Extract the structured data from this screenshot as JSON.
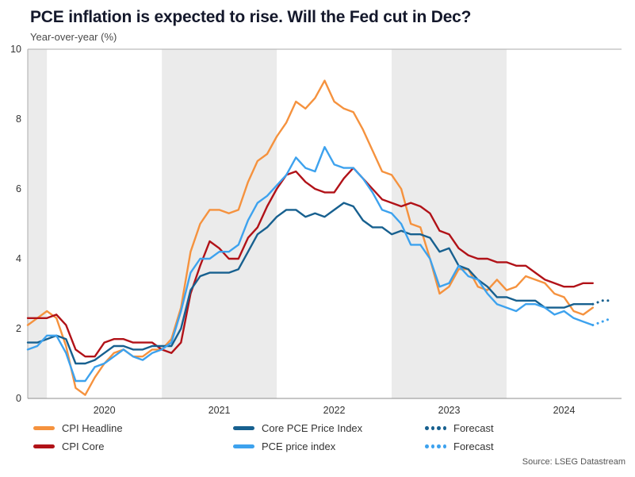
{
  "header": {
    "title": "PCE inflation is expected to rise. Will the Fed cut in Dec?",
    "subtitle": "Year-over-year (%)"
  },
  "source": {
    "text": "Source: LSEG Datastream"
  },
  "legend": {
    "items": [
      {
        "label": "CPI Headline",
        "color": "#f5923e",
        "style": "solid"
      },
      {
        "label": "CPI Core",
        "color": "#b11218",
        "style": "solid"
      },
      {
        "label": "Core PCE Price Index",
        "color": "#17608f",
        "style": "solid"
      },
      {
        "label": "PCE price index",
        "color": "#3da2ee",
        "style": "solid"
      },
      {
        "label": "Forecast",
        "color": "#17608f",
        "style": "dotted"
      },
      {
        "label": "Forecast",
        "color": "#3da2ee",
        "style": "dotted"
      }
    ]
  },
  "chart_data": {
    "type": "line",
    "title": "PCE inflation is expected to rise. Will the Fed cut in Dec?",
    "subtitle": "Year-over-year (%)",
    "x_start_month": "2019-11",
    "x_domain": [
      2019.8333,
      2025.0
    ],
    "x_ticks": [
      2020,
      2021,
      2022,
      2023,
      2024
    ],
    "shaded_years": [
      2019,
      2021,
      2023
    ],
    "band_color": "#ebebeb",
    "ylim": [
      0,
      10
    ],
    "y_ticks": [
      0,
      2,
      4,
      6,
      8,
      10
    ],
    "grid": false,
    "legend_position": "bottom",
    "series": [
      {
        "name": "CPI Headline",
        "color": "#f5923e",
        "values": [
          2.1,
          2.3,
          2.5,
          2.3,
          1.5,
          0.3,
          0.1,
          0.6,
          1.0,
          1.3,
          1.4,
          1.2,
          1.2,
          1.4,
          1.4,
          1.7,
          2.6,
          4.2,
          5.0,
          5.4,
          5.4,
          5.3,
          5.4,
          6.2,
          6.8,
          7.0,
          7.5,
          7.9,
          8.5,
          8.3,
          8.6,
          9.1,
          8.5,
          8.3,
          8.2,
          7.7,
          7.1,
          6.5,
          6.4,
          6.0,
          5.0,
          4.9,
          4.0,
          3.0,
          3.2,
          3.7,
          3.7,
          3.2,
          3.1,
          3.4,
          3.1,
          3.2,
          3.5,
          3.4,
          3.3,
          3.0,
          2.9,
          2.5,
          2.4,
          2.6
        ]
      },
      {
        "name": "CPI Core",
        "color": "#b11218",
        "values": [
          2.3,
          2.3,
          2.3,
          2.4,
          2.1,
          1.4,
          1.2,
          1.2,
          1.6,
          1.7,
          1.7,
          1.6,
          1.6,
          1.6,
          1.4,
          1.3,
          1.6,
          3.0,
          3.8,
          4.5,
          4.3,
          4.0,
          4.0,
          4.6,
          4.9,
          5.5,
          6.0,
          6.4,
          6.5,
          6.2,
          6.0,
          5.9,
          5.9,
          6.3,
          6.6,
          6.3,
          6.0,
          5.7,
          5.6,
          5.5,
          5.6,
          5.5,
          5.3,
          4.8,
          4.7,
          4.3,
          4.1,
          4.0,
          4.0,
          3.9,
          3.9,
          3.8,
          3.8,
          3.6,
          3.4,
          3.3,
          3.2,
          3.2,
          3.3,
          3.3
        ]
      },
      {
        "name": "Core PCE Price Index",
        "color": "#17608f",
        "values": [
          1.6,
          1.6,
          1.7,
          1.8,
          1.7,
          1.0,
          1.0,
          1.1,
          1.3,
          1.5,
          1.5,
          1.4,
          1.4,
          1.5,
          1.5,
          1.5,
          2.0,
          3.1,
          3.5,
          3.6,
          3.6,
          3.6,
          3.7,
          4.2,
          4.7,
          4.9,
          5.2,
          5.4,
          5.4,
          5.2,
          5.3,
          5.2,
          5.4,
          5.6,
          5.5,
          5.1,
          4.9,
          4.9,
          4.7,
          4.8,
          4.7,
          4.7,
          4.6,
          4.2,
          4.3,
          3.8,
          3.7,
          3.4,
          3.2,
          2.9,
          2.9,
          2.8,
          2.8,
          2.8,
          2.6,
          2.6,
          2.6,
          2.7,
          2.7,
          2.7
        ]
      },
      {
        "name": "PCE price index",
        "color": "#3da2ee",
        "values": [
          1.4,
          1.5,
          1.8,
          1.8,
          1.3,
          0.5,
          0.5,
          0.9,
          1.0,
          1.2,
          1.4,
          1.2,
          1.1,
          1.3,
          1.4,
          1.6,
          2.5,
          3.6,
          4.0,
          4.0,
          4.2,
          4.2,
          4.4,
          5.1,
          5.6,
          5.8,
          6.1,
          6.4,
          6.9,
          6.6,
          6.5,
          7.2,
          6.7,
          6.6,
          6.6,
          6.3,
          5.9,
          5.4,
          5.3,
          5.0,
          4.4,
          4.4,
          4.0,
          3.2,
          3.3,
          3.8,
          3.5,
          3.4,
          3.0,
          2.7,
          2.6,
          2.5,
          2.7,
          2.7,
          2.6,
          2.4,
          2.5,
          2.3,
          2.2,
          2.1
        ]
      }
    ],
    "forecasts": [
      {
        "name": "Forecast",
        "series": "Core PCE Price Index",
        "color": "#17608f",
        "values": [
          2.8,
          2.8
        ]
      },
      {
        "name": "Forecast",
        "series": "PCE price index",
        "color": "#3da2ee",
        "values": [
          2.2,
          2.3
        ]
      }
    ]
  }
}
